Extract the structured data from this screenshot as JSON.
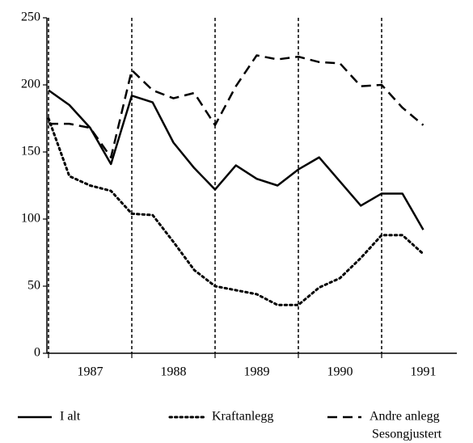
{
  "chart_data": {
    "type": "line",
    "categories": [
      null,
      null,
      "1987",
      null,
      null,
      null,
      "1988",
      null,
      null,
      null,
      "1989",
      null,
      null,
      null,
      "1990",
      null,
      null,
      null,
      "1991"
    ],
    "series": [
      {
        "name": "I alt",
        "color": "#000000",
        "dash": "solid",
        "values": [
          196,
          185,
          168,
          141,
          192,
          187,
          157,
          138,
          122,
          140,
          130,
          125,
          137,
          146,
          128,
          110,
          119,
          119,
          92
        ]
      },
      {
        "name": "Kraftanlegg",
        "color": "#000000",
        "dash": "dotted",
        "values": [
          175,
          132,
          125,
          121,
          104,
          103,
          83,
          62,
          50,
          47,
          44,
          36,
          36,
          49,
          56,
          71,
          88,
          88,
          74
        ]
      },
      {
        "name": "Andre anlegg",
        "color": "#000000",
        "dash": "dashed",
        "values": [
          171,
          171,
          168,
          146,
          211,
          196,
          190,
          194,
          170,
          199,
          222,
          219,
          221,
          217,
          216,
          199,
          200,
          183,
          170
        ]
      }
    ],
    "note": "Sesongjustert",
    "ylim": [
      0,
      250
    ],
    "yticks": [
      0,
      50,
      100,
      150,
      200,
      250
    ],
    "legend": "bottom",
    "grid": false
  }
}
